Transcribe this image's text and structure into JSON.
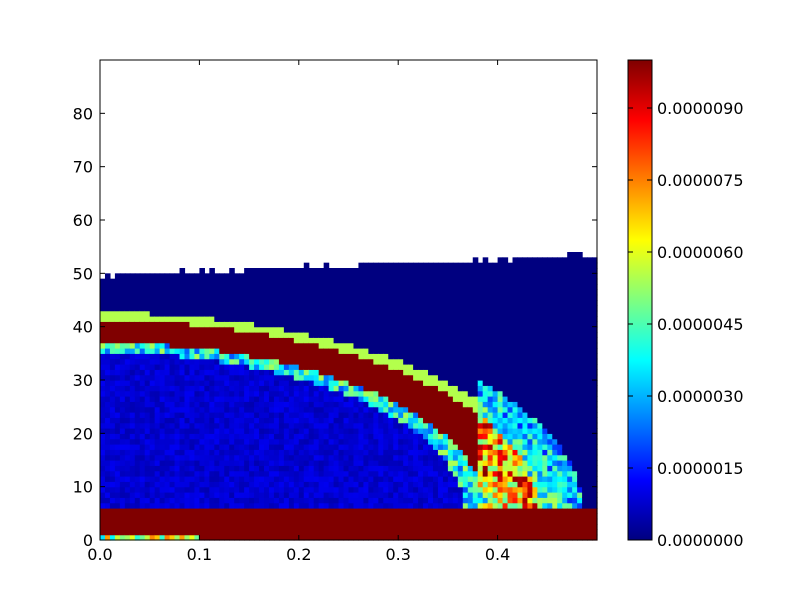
{
  "chart_data": {
    "type": "heatmap",
    "title": "",
    "xlabel": "",
    "ylabel": "",
    "xlim": [
      0.0,
      0.5
    ],
    "ylim": [
      0,
      90
    ],
    "xticks": [
      "0.0",
      "0.1",
      "0.2",
      "0.3",
      "0.4"
    ],
    "yticks": [
      "0",
      "10",
      "20",
      "30",
      "40",
      "50",
      "60",
      "70",
      "80"
    ],
    "colormap": "jet",
    "colorbar": {
      "range": [
        0.0,
        1e-05
      ],
      "ticks": [
        "0.0000000",
        "0.0000015",
        "0.0000030",
        "0.0000045",
        "0.0000060",
        "0.0000075",
        "0.0000090"
      ]
    },
    "grid": false,
    "field": {
      "description_of_regions": "no-data above upper boundary",
      "upper_boundary_y": {
        "x": [
          0.0,
          0.5
        ],
        "y": [
          49.5,
          53.5
        ]
      },
      "bottom_band": {
        "y": [
          0.5,
          5.5
        ],
        "value": 1e-05
      },
      "arc_band": {
        "center_x": 0.0,
        "center_y": 5.5,
        "radius_x": 0.45,
        "radius_y": 36.5,
        "thickness_y": 5.0,
        "value": 1e-05
      },
      "interior_value": 8e-07,
      "exterior_value": 0.0
    }
  }
}
